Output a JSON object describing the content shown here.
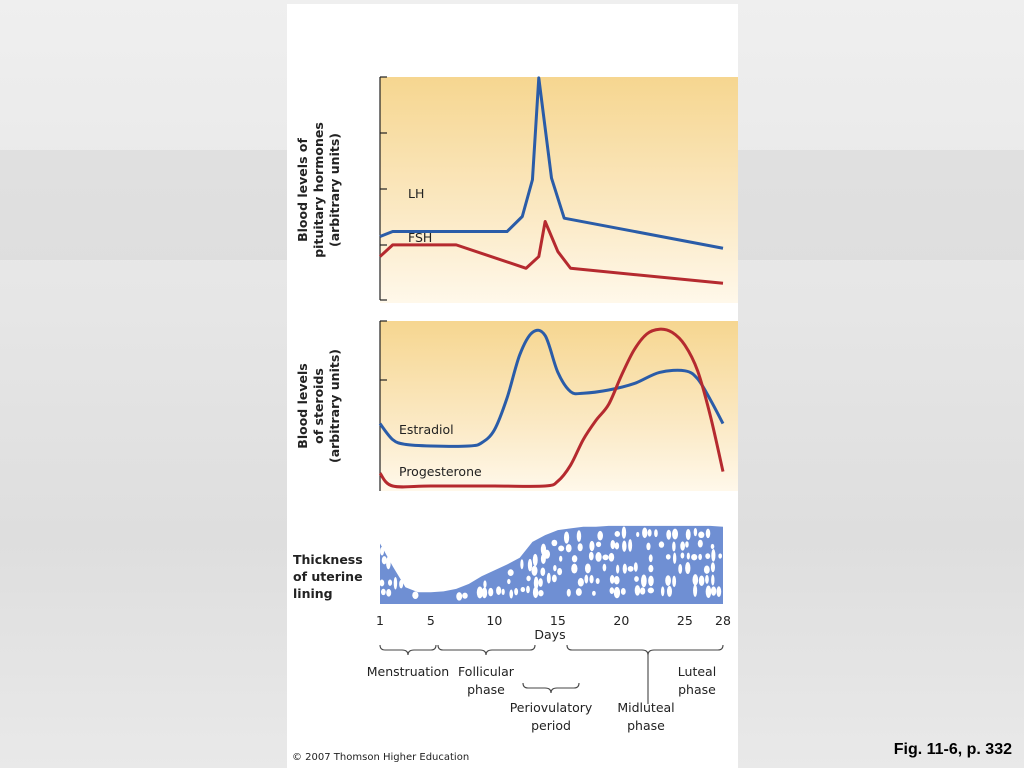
{
  "chart_data": [
    {
      "type": "line",
      "ylabel": "Blood levels of pituitary hormones (arbitrary units)",
      "xlabel": "Days",
      "xlim": [
        1,
        28
      ],
      "ylim": [
        0,
        1
      ],
      "grid": false,
      "series": [
        {
          "name": "LH",
          "color": "#2a5ca8",
          "x": [
            1,
            2,
            4,
            11,
            12.2,
            13,
            13.5,
            14.5,
            15.5,
            28
          ],
          "y": [
            0.38,
            0.41,
            0.41,
            0.41,
            0.5,
            0.72,
            1.33,
            0.73,
            0.49,
            0.31
          ]
        },
        {
          "name": "FSH",
          "color": "#b52a2f",
          "x": [
            1,
            2,
            7,
            12.5,
            13.5,
            14,
            15,
            16,
            28
          ],
          "y": [
            0.26,
            0.33,
            0.33,
            0.19,
            0.26,
            0.47,
            0.29,
            0.19,
            0.1
          ]
        }
      ]
    },
    {
      "type": "line",
      "ylabel": "Blood levels of steroids (arbitrary units)",
      "xlabel": "Days",
      "xlim": [
        1,
        28
      ],
      "ylim": [
        0,
        1
      ],
      "grid": false,
      "series": [
        {
          "name": "Estradiol",
          "color": "#2a5ca8",
          "x": [
            1,
            2,
            3,
            5,
            8,
            9,
            10,
            11,
            12,
            13,
            14,
            15,
            16,
            17,
            19,
            21,
            23,
            25,
            26,
            27,
            28
          ],
          "y": [
            0.39,
            0.29,
            0.26,
            0.25,
            0.25,
            0.27,
            0.35,
            0.55,
            0.82,
            0.96,
            0.94,
            0.71,
            0.59,
            0.58,
            0.6,
            0.64,
            0.71,
            0.72,
            0.67,
            0.54,
            0.39
          ]
        },
        {
          "name": "Progesterone",
          "color": "#b52a2f",
          "x": [
            1,
            2,
            5,
            10,
            14,
            15,
            16,
            17,
            18,
            19,
            20,
            21,
            22,
            23,
            24,
            25,
            26,
            27,
            28
          ],
          "y": [
            0.08,
            0.0,
            0.0,
            0.0,
            0.0,
            0.03,
            0.13,
            0.29,
            0.41,
            0.51,
            0.69,
            0.85,
            0.95,
            0.98,
            0.96,
            0.88,
            0.72,
            0.44,
            0.09
          ]
        }
      ]
    },
    {
      "type": "area",
      "ylabel": "Thickness of uterine lining",
      "xlabel": "Days",
      "xlim": [
        1,
        28
      ],
      "ylim": [
        0,
        1
      ],
      "color": "#6f8fd3",
      "x": [
        1,
        2,
        3,
        4,
        5,
        6,
        7,
        8,
        9,
        10,
        11,
        12,
        13,
        14,
        15,
        16,
        17,
        18,
        19,
        20,
        21,
        22,
        23,
        24,
        25,
        26,
        27,
        28
      ],
      "y": [
        0.72,
        0.45,
        0.2,
        0.14,
        0.14,
        0.15,
        0.18,
        0.24,
        0.33,
        0.4,
        0.47,
        0.55,
        0.74,
        0.82,
        0.88,
        0.9,
        0.92,
        0.92,
        0.93,
        0.93,
        0.93,
        0.93,
        0.93,
        0.93,
        0.93,
        0.93,
        0.93,
        0.92
      ]
    }
  ],
  "labels": {
    "pituitary_ylabel_1": "Blood levels of",
    "pituitary_ylabel_2": "pituitary hormones",
    "pituitary_ylabel_3": "(arbitrary units)",
    "lh": "LH",
    "fsh": "FSH",
    "steroid_ylabel_1": "Blood levels",
    "steroid_ylabel_2": "of steroids",
    "steroid_ylabel_3": "(arbitrary units)",
    "estradiol": "Estradiol",
    "progesterone": "Progesterone",
    "thickness_1": "Thickness",
    "thickness_2": "of uterine",
    "thickness_3": "lining",
    "days": "Days",
    "ticks": [
      "1",
      "5",
      "10",
      "15",
      "20",
      "25",
      "28"
    ],
    "menstruation": "Menstruation",
    "follicular_1": "Follicular",
    "follicular_2": "phase",
    "periovulatory_1": "Periovulatory",
    "periovulatory_2": "period",
    "midluteal_1": "Midluteal",
    "midluteal_2": "phase",
    "luteal_1": "Luteal",
    "luteal_2": "phase",
    "copyright": "© 2007 Thomson Higher Education",
    "fig_ref": "Fig. 11-6, p. 332"
  }
}
